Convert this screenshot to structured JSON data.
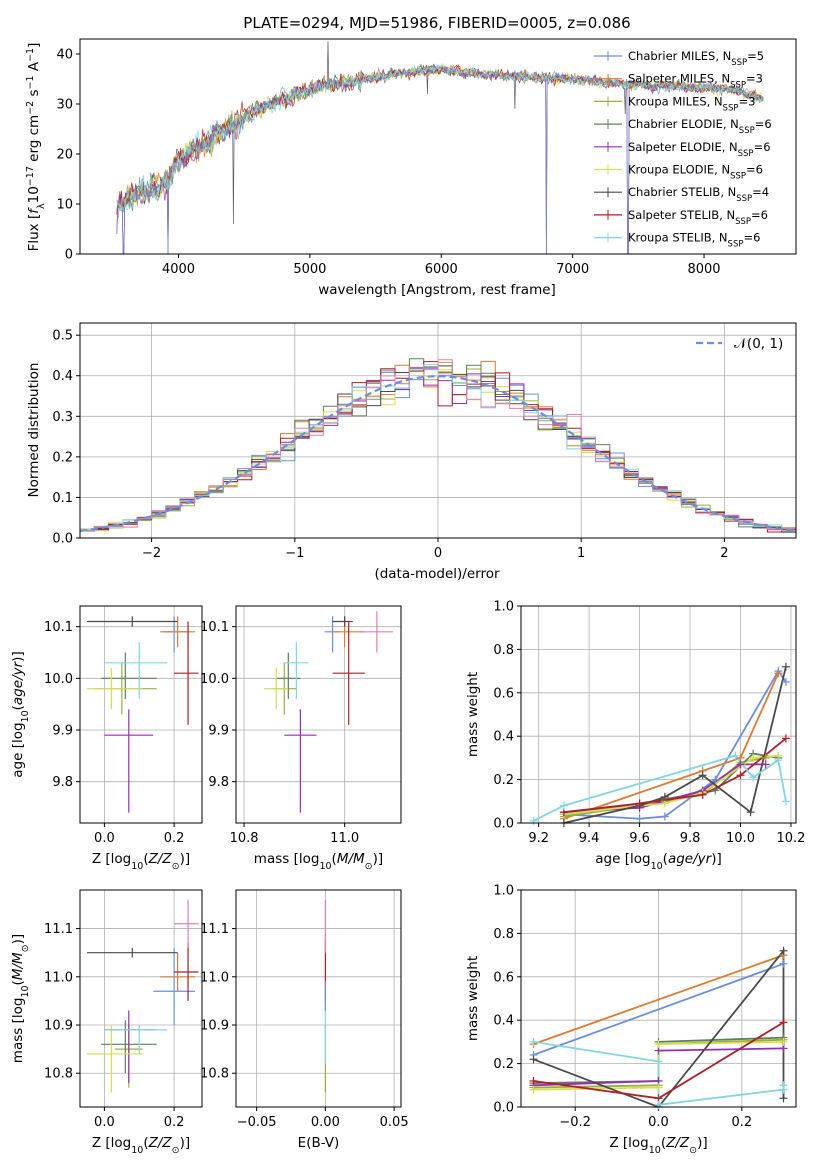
{
  "colors": {
    "Chabrier MILES": "#6a8fe0",
    "Salpeter MILES": "#e07a2e",
    "Kroupa MILES": "#9aaf3a",
    "Chabrier ELODIE": "#5f7f5a",
    "Salpeter ELODIE": "#9a2bb8",
    "Kroupa ELODIE": "#d4e04a",
    "Chabrier STELIB": "#4a4a4a",
    "Salpeter STELIB": "#b01e2a",
    "Kroupa STELIB": "#7fd8e0"
  },
  "chart_data": [
    {
      "id": "spectrum",
      "type": "line",
      "title": "PLATE=0294, MJD=51986, FIBERID=0005, z=0.086",
      "xlabel": "wavelength [Angstrom, rest frame]",
      "ylabel": "Flux [f_λ 10^{-17} erg cm^{-2} s^{-1} A^{-1}]",
      "xlim": [
        3250,
        8700
      ],
      "ylim": [
        0,
        43
      ],
      "xticks": [
        4000,
        5000,
        6000,
        7000,
        8000
      ],
      "yticks": [
        0,
        10,
        20,
        30,
        40
      ],
      "grid": false,
      "legend_position": "top-right",
      "continuum": [
        [
          3530,
          9
        ],
        [
          3600,
          11
        ],
        [
          3700,
          12
        ],
        [
          3800,
          13
        ],
        [
          3900,
          14
        ],
        [
          4000,
          19
        ],
        [
          4200,
          22
        ],
        [
          4400,
          26
        ],
        [
          4600,
          29
        ],
        [
          4800,
          31
        ],
        [
          5000,
          33
        ],
        [
          5200,
          34
        ],
        [
          5500,
          35.5
        ],
        [
          5800,
          36.5
        ],
        [
          6000,
          37
        ],
        [
          6300,
          36
        ],
        [
          6600,
          35.5
        ],
        [
          7000,
          35
        ],
        [
          7400,
          34
        ],
        [
          7800,
          33.5
        ],
        [
          8200,
          33
        ],
        [
          8450,
          31
        ]
      ],
      "spikes": [
        [
          5140,
          42.5
        ],
        [
          4420,
          6
        ],
        [
          6560,
          29
        ],
        [
          5895,
          32
        ],
        [
          7400,
          28
        ]
      ],
      "drops": [
        [
          3530,
          4
        ],
        [
          3580,
          0
        ],
        [
          3920,
          0
        ],
        [
          6800,
          0
        ],
        [
          7420,
          0
        ]
      ],
      "series": [
        {
          "name": "Chabrier MILES",
          "nssp": "5"
        },
        {
          "name": "Salpeter MILES",
          "nssp": "3"
        },
        {
          "name": "Kroupa MILES",
          "nssp": "3"
        },
        {
          "name": "Chabrier ELODIE",
          "nssp": "6"
        },
        {
          "name": "Salpeter ELODIE",
          "nssp": "6"
        },
        {
          "name": "Kroupa ELODIE",
          "nssp": "6"
        },
        {
          "name": "Chabrier STELIB",
          "nssp": "4"
        },
        {
          "name": "Salpeter STELIB",
          "nssp": "6"
        },
        {
          "name": "Kroupa STELIB",
          "nssp": "6"
        }
      ]
    },
    {
      "id": "residuals",
      "type": "line",
      "xlabel": "(data-model)/error",
      "ylabel": "Normed distribution",
      "xlim": [
        -2.5,
        2.5
      ],
      "ylim": [
        0,
        0.53
      ],
      "xticks": [
        -2,
        -1,
        0,
        1,
        2
      ],
      "yticks": [
        0.0,
        0.1,
        0.2,
        0.3,
        0.4,
        0.5
      ],
      "grid": true,
      "legend_position": "top-right",
      "legend_label": "𝒩(0, 1)",
      "bin_width": 0.1,
      "histogram": "step"
    },
    {
      "id": "age_vs_Z",
      "type": "scatter",
      "xlabel": "Z [log10(Z/Z⊙)]",
      "ylabel": "age [log10(age/yr)]",
      "xlim": [
        -0.07,
        0.28
      ],
      "ylim": [
        9.72,
        10.14
      ],
      "xticks": [
        0.0,
        0.2
      ],
      "yticks": [
        9.8,
        9.9,
        10.0,
        10.1
      ],
      "grid": true,
      "points": [
        {
          "series": "Chabrier MILES",
          "x": 0.2,
          "y": 10.09,
          "xerr": [
            0.03,
            0.04
          ],
          "yerr": [
            0.04,
            0.03
          ]
        },
        {
          "series": "Salpeter MILES",
          "x": 0.21,
          "y": 10.09,
          "xerr": [
            0.05,
            0.05
          ],
          "yerr": [
            0.03,
            0.03
          ]
        },
        {
          "series": "Kroupa MILES",
          "x": 0.05,
          "y": 9.98,
          "xerr": [
            0.08,
            0.1
          ],
          "yerr": [
            0.05,
            0.05
          ]
        },
        {
          "series": "Chabrier ELODIE",
          "x": 0.06,
          "y": 10.0,
          "xerr": [
            0.07,
            0.09
          ],
          "yerr": [
            0.04,
            0.05
          ]
        },
        {
          "series": "Salpeter ELODIE",
          "x": 0.07,
          "y": 9.89,
          "xerr": [
            0.07,
            0.07
          ],
          "yerr": [
            0.15,
            0.05
          ]
        },
        {
          "series": "Kroupa ELODIE",
          "x": 0.02,
          "y": 9.98,
          "xerr": [
            0.07,
            0.09
          ],
          "yerr": [
            0.04,
            0.04
          ]
        },
        {
          "series": "Chabrier STELIB",
          "x": 0.08,
          "y": 10.11,
          "xerr": [
            0.13,
            0.13
          ],
          "yerr": [
            0.01,
            0.01
          ]
        },
        {
          "series": "Salpeter STELIB",
          "x": 0.24,
          "y": 10.01,
          "xerr": [
            0.04,
            0.03
          ],
          "yerr": [
            0.1,
            0.1
          ]
        },
        {
          "series": "Kroupa STELIB",
          "x": 0.1,
          "y": 10.03,
          "xerr": [
            0.1,
            0.08
          ],
          "yerr": [
            0.07,
            0.04
          ]
        }
      ]
    },
    {
      "id": "age_vs_mass",
      "type": "scatter",
      "xlabel": "mass [log10(M/M⊙)]",
      "ylabel": "",
      "xlim": [
        10.73,
        11.14
      ],
      "ylim": [
        9.72,
        10.14
      ],
      "xticks": [
        10.75,
        11.0
      ],
      "yticks": [
        9.8,
        9.9,
        10.0,
        10.1
      ],
      "grid": true,
      "points": [
        {
          "series": "Chabrier MILES",
          "x": 10.97,
          "y": 10.09,
          "xerr": [
            0.02,
            0.02
          ],
          "yerr": [
            0.04,
            0.03
          ]
        },
        {
          "series": "Salpeter MILES",
          "x": 11.0,
          "y": 10.09,
          "xerr": [
            0.03,
            0.05
          ],
          "yerr": [
            0.03,
            0.03
          ]
        },
        {
          "series": "Kroupa MILES",
          "x": 10.85,
          "y": 9.98,
          "xerr": [
            0.03,
            0.03
          ],
          "yerr": [
            0.05,
            0.05
          ]
        },
        {
          "series": "Chabrier ELODIE",
          "x": 10.86,
          "y": 10.0,
          "xerr": [
            0.03,
            0.03
          ],
          "yerr": [
            0.04,
            0.05
          ]
        },
        {
          "series": "Salpeter ELODIE",
          "x": 10.89,
          "y": 9.89,
          "xerr": [
            0.04,
            0.04
          ],
          "yerr": [
            0.15,
            0.05
          ]
        },
        {
          "series": "Kroupa ELODIE",
          "x": 10.83,
          "y": 9.98,
          "xerr": [
            0.03,
            0.03
          ],
          "yerr": [
            0.04,
            0.04
          ]
        },
        {
          "series": "Chabrier STELIB",
          "x": 11.0,
          "y": 10.11,
          "xerr": [
            0.03,
            0.02
          ],
          "yerr": [
            0.01,
            0.01
          ]
        },
        {
          "series": "Salpeter STELIB",
          "x": 11.01,
          "y": 10.01,
          "xerr": [
            0.04,
            0.04
          ],
          "yerr": [
            0.1,
            0.1
          ]
        },
        {
          "series": "Kroupa STELIB",
          "x": 10.88,
          "y": 10.03,
          "xerr": [
            0.03,
            0.03
          ],
          "yerr": [
            0.07,
            0.04
          ]
        },
        {
          "series": "Pink",
          "x": 11.08,
          "y": 10.09,
          "xerr": [
            0.04,
            0.04
          ],
          "yerr": [
            0.04,
            0.04
          ]
        }
      ]
    },
    {
      "id": "weight_vs_age",
      "type": "line",
      "xlabel": "age [log10(age/yr)]",
      "ylabel": "mass weight",
      "xlim": [
        9.13,
        10.22
      ],
      "ylim": [
        0,
        1.0
      ],
      "xticks": [
        9.2,
        9.4,
        9.6,
        9.8,
        10.0,
        10.2
      ],
      "yticks": [
        0.0,
        0.2,
        0.4,
        0.6,
        0.8,
        1.0
      ],
      "grid": true,
      "series": [
        {
          "name": "Chabrier MILES",
          "x": [
            9.3,
            9.6,
            9.7,
            9.9,
            10.15,
            10.18
          ],
          "y": [
            0.04,
            0.02,
            0.03,
            0.2,
            0.7,
            0.65
          ]
        },
        {
          "name": "Salpeter MILES",
          "x": [
            9.3,
            9.85,
            10.0,
            10.15
          ],
          "y": [
            0.02,
            0.24,
            0.3,
            0.69
          ]
        },
        {
          "name": "Kroupa MILES",
          "x": [
            9.3,
            9.6,
            9.7,
            9.85,
            10.0,
            10.1
          ],
          "y": [
            0.03,
            0.08,
            0.1,
            0.13,
            0.28,
            0.3
          ]
        },
        {
          "name": "Chabrier ELODIE",
          "x": [
            9.3,
            9.6,
            9.9,
            10.05,
            10.15
          ],
          "y": [
            0.04,
            0.09,
            0.15,
            0.32,
            0.3
          ]
        },
        {
          "name": "Salpeter ELODIE",
          "x": [
            9.3,
            9.6,
            9.85,
            10.0,
            10.1
          ],
          "y": [
            0.05,
            0.07,
            0.15,
            0.27,
            0.27
          ]
        },
        {
          "name": "Kroupa ELODIE",
          "x": [
            9.3,
            9.6,
            9.7,
            9.85,
            10.05,
            10.15
          ],
          "y": [
            0.04,
            0.08,
            0.09,
            0.14,
            0.3,
            0.31
          ]
        },
        {
          "name": "Chabrier STELIB",
          "x": [
            9.3,
            9.6,
            9.7,
            9.85,
            10.04,
            10.18
          ],
          "y": [
            0.0,
            0.08,
            0.12,
            0.22,
            0.05,
            0.72
          ]
        },
        {
          "name": "Salpeter STELIB",
          "x": [
            9.3,
            9.6,
            9.85,
            10.0,
            10.18
          ],
          "y": [
            0.05,
            0.09,
            0.13,
            0.22,
            0.39
          ]
        },
        {
          "name": "Kroupa STELIB",
          "x": [
            9.18,
            9.3,
            9.98,
            10.05,
            10.15,
            10.18
          ],
          "y": [
            0.01,
            0.08,
            0.31,
            0.21,
            0.29,
            0.1
          ]
        }
      ]
    },
    {
      "id": "mass_vs_Z",
      "type": "scatter",
      "xlabel": "Z [log10(Z/Z⊙)]",
      "ylabel": "mass [log10(M/M⊙)]",
      "xlim": [
        -0.07,
        0.28
      ],
      "ylim": [
        10.73,
        11.18
      ],
      "xticks": [
        0.0,
        0.2
      ],
      "yticks": [
        10.8,
        10.9,
        11.0,
        11.1
      ],
      "grid": true,
      "points": [
        {
          "series": "Chabrier MILES",
          "x": 0.2,
          "y": 10.97,
          "xerr": [
            0.06,
            0.06
          ],
          "yerr": [
            0.07,
            0.09
          ]
        },
        {
          "series": "Salpeter MILES",
          "x": 0.21,
          "y": 11.0,
          "xerr": [
            0.05,
            0.05
          ],
          "yerr": [
            0.03,
            0.05
          ]
        },
        {
          "series": "Kroupa MILES",
          "x": 0.07,
          "y": 10.85,
          "xerr": [
            0.04,
            0.04
          ],
          "yerr": [
            0.08,
            0.05
          ]
        },
        {
          "series": "Chabrier ELODIE",
          "x": 0.06,
          "y": 10.86,
          "xerr": [
            0.07,
            0.09
          ],
          "yerr": [
            0.06,
            0.05
          ]
        },
        {
          "series": "Salpeter ELODIE",
          "x": 0.07,
          "y": 10.89,
          "xerr": [
            0.07,
            0.08
          ],
          "yerr": [
            0.11,
            0.04
          ]
        },
        {
          "series": "Kroupa ELODIE",
          "x": 0.02,
          "y": 10.84,
          "xerr": [
            0.07,
            0.09
          ],
          "yerr": [
            0.08,
            0.06
          ]
        },
        {
          "series": "Chabrier STELIB",
          "x": 0.08,
          "y": 11.05,
          "xerr": [
            0.13,
            0.13
          ],
          "yerr": [
            0.01,
            0.01
          ]
        },
        {
          "series": "Salpeter STELIB",
          "x": 0.24,
          "y": 11.01,
          "xerr": [
            0.04,
            0.03
          ],
          "yerr": [
            0.06,
            0.06
          ]
        },
        {
          "series": "Kroupa STELIB",
          "x": 0.1,
          "y": 10.89,
          "xerr": [
            0.1,
            0.08
          ],
          "yerr": [
            0.05,
            0.01
          ]
        },
        {
          "series": "Pink",
          "x": 0.24,
          "y": 11.11,
          "xerr": [
            0.04,
            0.03
          ],
          "yerr": [
            0.05,
            0.05
          ]
        }
      ]
    },
    {
      "id": "mass_vs_EBV",
      "type": "scatter",
      "xlabel": "E(B-V)",
      "ylabel": "",
      "xlim": [
        -0.065,
        0.055
      ],
      "ylim": [
        10.73,
        11.18
      ],
      "xticks": [
        -0.05,
        0.0,
        0.05
      ],
      "yticks": [
        10.8,
        10.9,
        11.0,
        11.1
      ],
      "grid": true,
      "points": [
        {
          "series": "Salpeter STELIB",
          "x": 0.0,
          "y": 11.0,
          "yerr": [
            0.05,
            0.08
          ]
        },
        {
          "series": "Kroupa MILES",
          "x": 0.0,
          "y": 10.85,
          "yerr": [
            0.09,
            0.05
          ]
        },
        {
          "series": "Pink",
          "x": 0.0,
          "y": 11.05,
          "yerr": [
            0.0,
            0.11
          ]
        },
        {
          "series": "Kroupa STELIB",
          "x": 0.0,
          "y": 10.9,
          "yerr": [
            0.08,
            0.05
          ]
        },
        {
          "series": "Chabrier MILES",
          "x": 0.0,
          "y": 10.96,
          "yerr": [
            0.03,
            0.03
          ]
        }
      ]
    },
    {
      "id": "weight_vs_Z",
      "type": "line",
      "xlabel": "Z [log10(Z/Z⊙)]",
      "ylabel": "mass weight",
      "xlim": [
        -0.33,
        0.33
      ],
      "ylim": [
        0,
        1.0
      ],
      "xticks": [
        -0.2,
        0.0,
        0.2
      ],
      "yticks": [
        0.0,
        0.2,
        0.4,
        0.6,
        0.8,
        1.0
      ],
      "grid": true,
      "series": [
        {
          "name": "Chabrier MILES",
          "x": [
            -0.3,
            0.3
          ],
          "y": [
            0.24,
            0.66
          ]
        },
        {
          "name": "Salpeter MILES",
          "x": [
            -0.3,
            0.3
          ],
          "y": [
            0.29,
            0.7
          ]
        },
        {
          "name": "Kroupa MILES",
          "x": [
            -0.3,
            0.0,
            0.0,
            0.3
          ],
          "y": [
            0.09,
            0.1,
            0.29,
            0.31
          ]
        },
        {
          "name": "Chabrier ELODIE",
          "x": [
            -0.3,
            0.0,
            0.0,
            0.3
          ],
          "y": [
            0.11,
            0.12,
            0.3,
            0.32
          ]
        },
        {
          "name": "Salpeter ELODIE",
          "x": [
            -0.3,
            0.0,
            0.0,
            0.3
          ],
          "y": [
            0.1,
            0.12,
            0.26,
            0.27
          ]
        },
        {
          "name": "Kroupa ELODIE",
          "x": [
            -0.3,
            0.0,
            0.0,
            0.3
          ],
          "y": [
            0.08,
            0.09,
            0.29,
            0.3
          ]
        },
        {
          "name": "Chabrier STELIB",
          "x": [
            -0.3,
            0.0,
            0.3,
            0.3
          ],
          "y": [
            0.22,
            0.0,
            0.72,
            0.04
          ]
        },
        {
          "name": "Salpeter STELIB",
          "x": [
            -0.3,
            0.0,
            0.3
          ],
          "y": [
            0.12,
            0.04,
            0.39
          ]
        },
        {
          "name": "Kroupa STELIB",
          "x": [
            -0.3,
            0.0,
            0.0,
            0.3,
            0.3
          ],
          "y": [
            0.3,
            0.21,
            0.01,
            0.08,
            0.1
          ]
        }
      ]
    }
  ]
}
